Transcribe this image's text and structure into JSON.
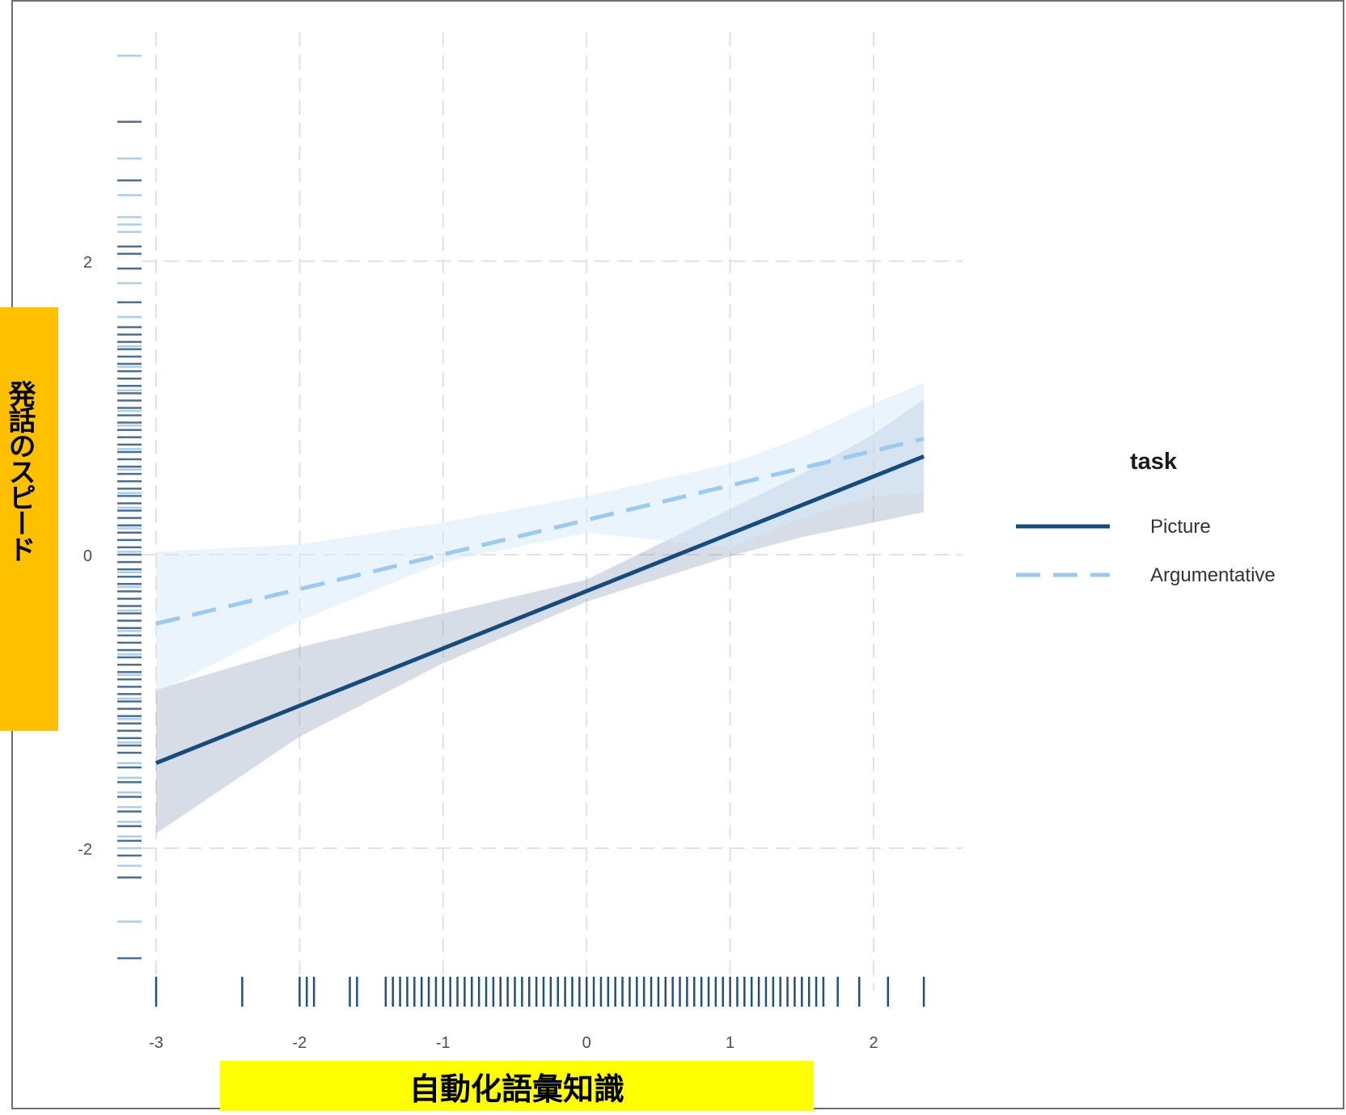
{
  "chart_data": {
    "type": "line",
    "xlabel": "自動化語彙知識",
    "ylabel": "発話のスピード",
    "x_ticks": [
      "-3",
      "-2",
      "-1",
      "0",
      "1",
      "2"
    ],
    "y_ticks": [
      "-2",
      "0",
      "2"
    ],
    "xlim": [
      -3.0,
      2.55
    ],
    "ylim": [
      -2.9,
      3.4
    ],
    "grid": true,
    "legend": {
      "title": "task",
      "position": "right"
    },
    "series": [
      {
        "name": "Picture",
        "style": "solid",
        "color": "#154b7d",
        "ribbon_color": "#8c9fb8",
        "line": [
          [
            -3.0,
            -1.42
          ],
          [
            2.35,
            0.67
          ]
        ],
        "ribbon_x": [
          -3.0,
          -2.0,
          -1.0,
          0.0,
          1.0,
          1.5,
          2.0,
          2.35
        ],
        "ribbon_low": [
          -1.9,
          -1.24,
          -0.74,
          -0.32,
          -0.01,
          0.12,
          0.22,
          0.29
        ],
        "ribbon_high": [
          -0.92,
          -0.63,
          -0.4,
          -0.17,
          0.31,
          0.55,
          0.82,
          1.06
        ]
      },
      {
        "name": "Argumentative",
        "style": "dashed",
        "color": "#9ccaef",
        "ribbon_color": "#d6eafb",
        "line": [
          [
            -3.0,
            -0.47
          ],
          [
            2.35,
            0.79
          ]
        ],
        "ribbon_x": [
          -3.0,
          -2.0,
          -1.0,
          0.0,
          1.0,
          1.5,
          2.0,
          2.35
        ],
        "ribbon_low": [
          -0.94,
          -0.45,
          -0.05,
          0.15,
          0.05,
          0.25,
          0.4,
          0.42
        ],
        "ribbon_high": [
          0.02,
          0.07,
          0.22,
          0.4,
          0.62,
          0.8,
          1.03,
          1.17
        ]
      }
    ],
    "x_rug": [
      -3.0,
      -2.4,
      -2.0,
      -1.95,
      -1.9,
      -1.65,
      -1.6,
      -1.4,
      -1.35,
      -1.3,
      -1.25,
      -1.2,
      -1.15,
      -1.1,
      -1.05,
      -1.0,
      -0.95,
      -0.9,
      -0.85,
      -0.8,
      -0.75,
      -0.7,
      -0.65,
      -0.6,
      -0.55,
      -0.5,
      -0.45,
      -0.4,
      -0.35,
      -0.3,
      -0.25,
      -0.2,
      -0.15,
      -0.1,
      -0.05,
      0.0,
      0.05,
      0.1,
      0.15,
      0.2,
      0.25,
      0.3,
      0.35,
      0.4,
      0.45,
      0.5,
      0.55,
      0.6,
      0.65,
      0.7,
      0.75,
      0.8,
      0.85,
      0.9,
      0.95,
      1.0,
      1.05,
      1.1,
      1.15,
      1.2,
      1.25,
      1.3,
      1.35,
      1.4,
      1.45,
      1.5,
      1.55,
      1.6,
      1.65,
      1.75,
      1.9,
      2.1,
      2.35
    ],
    "y_rug_dark": [
      2.95,
      2.55,
      2.1,
      2.05,
      1.95,
      1.72,
      1.55,
      1.5,
      1.45,
      1.4,
      1.35,
      1.3,
      1.25,
      1.2,
      1.15,
      1.1,
      1.05,
      1.0,
      0.95,
      0.9,
      0.85,
      0.8,
      0.75,
      0.7,
      0.65,
      0.6,
      0.55,
      0.5,
      0.45,
      0.4,
      0.35,
      0.3,
      0.25,
      0.2,
      0.15,
      0.1,
      0.05,
      0.0,
      -0.05,
      -0.1,
      -0.15,
      -0.2,
      -0.25,
      -0.3,
      -0.35,
      -0.4,
      -0.45,
      -0.5,
      -0.55,
      -0.6,
      -0.65,
      -0.7,
      -0.75,
      -0.8,
      -0.85,
      -0.9,
      -0.95,
      -1.0,
      -1.05,
      -1.1,
      -1.15,
      -1.2,
      -1.25,
      -1.3,
      -1.35,
      -1.45,
      -1.55,
      -1.65,
      -1.75,
      -1.85,
      -1.95,
      -2.05,
      -2.2,
      -2.75
    ],
    "y_rug_light": [
      3.4,
      2.7,
      2.45,
      2.3,
      2.25,
      2.2,
      1.85,
      1.62,
      1.42,
      1.28,
      1.12,
      0.98,
      0.88,
      0.72,
      0.58,
      0.42,
      0.32,
      0.18,
      0.02,
      -0.12,
      -0.22,
      -0.38,
      -0.52,
      -0.68,
      -0.82,
      -0.98,
      -1.12,
      -1.28,
      -1.42,
      -1.52,
      -1.62,
      -1.72,
      -1.82,
      -1.92,
      -2.0,
      -2.12,
      -2.5
    ]
  }
}
